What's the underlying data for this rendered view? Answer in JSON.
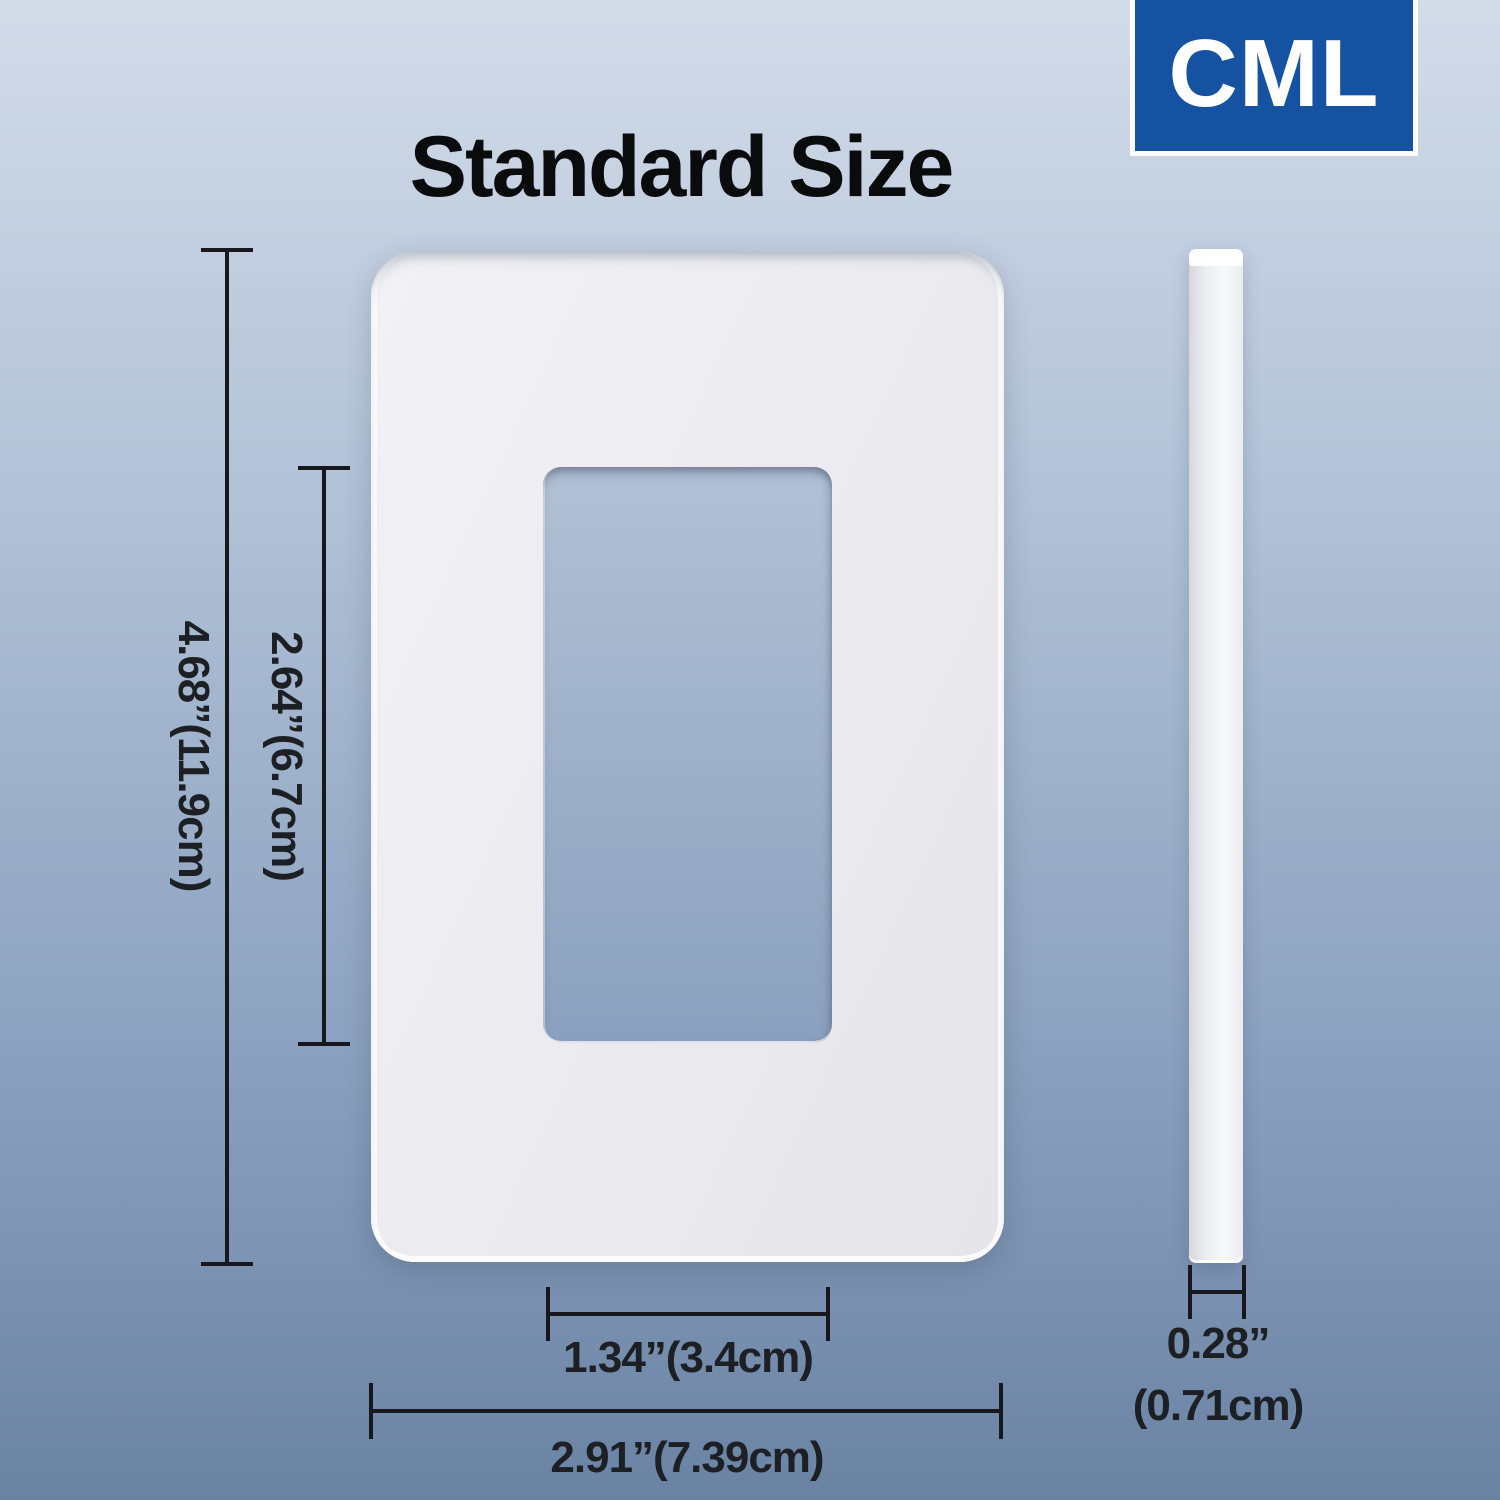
{
  "title": "Standard Size",
  "brand": {
    "name": "CML"
  },
  "dimensions": {
    "plate_height": "4.68”(11.9cm)",
    "cutout_height": "2.64”(6.7cm)",
    "cutout_width": "1.34”(3.4cm)",
    "plate_width": "2.91”(7.39cm)",
    "thickness_inches": "0.28”",
    "thickness_cm": "(0.71cm)"
  },
  "colors": {
    "brand_bg": "#1552a2",
    "bg_top": "#d3dce9",
    "bg_upper_mid": "#b0c0d5",
    "bg_lower_mid": "#8ba1bf",
    "bg_bottom": "#6b83a3",
    "line": "#16181d",
    "label_text": "#1c1f24"
  }
}
